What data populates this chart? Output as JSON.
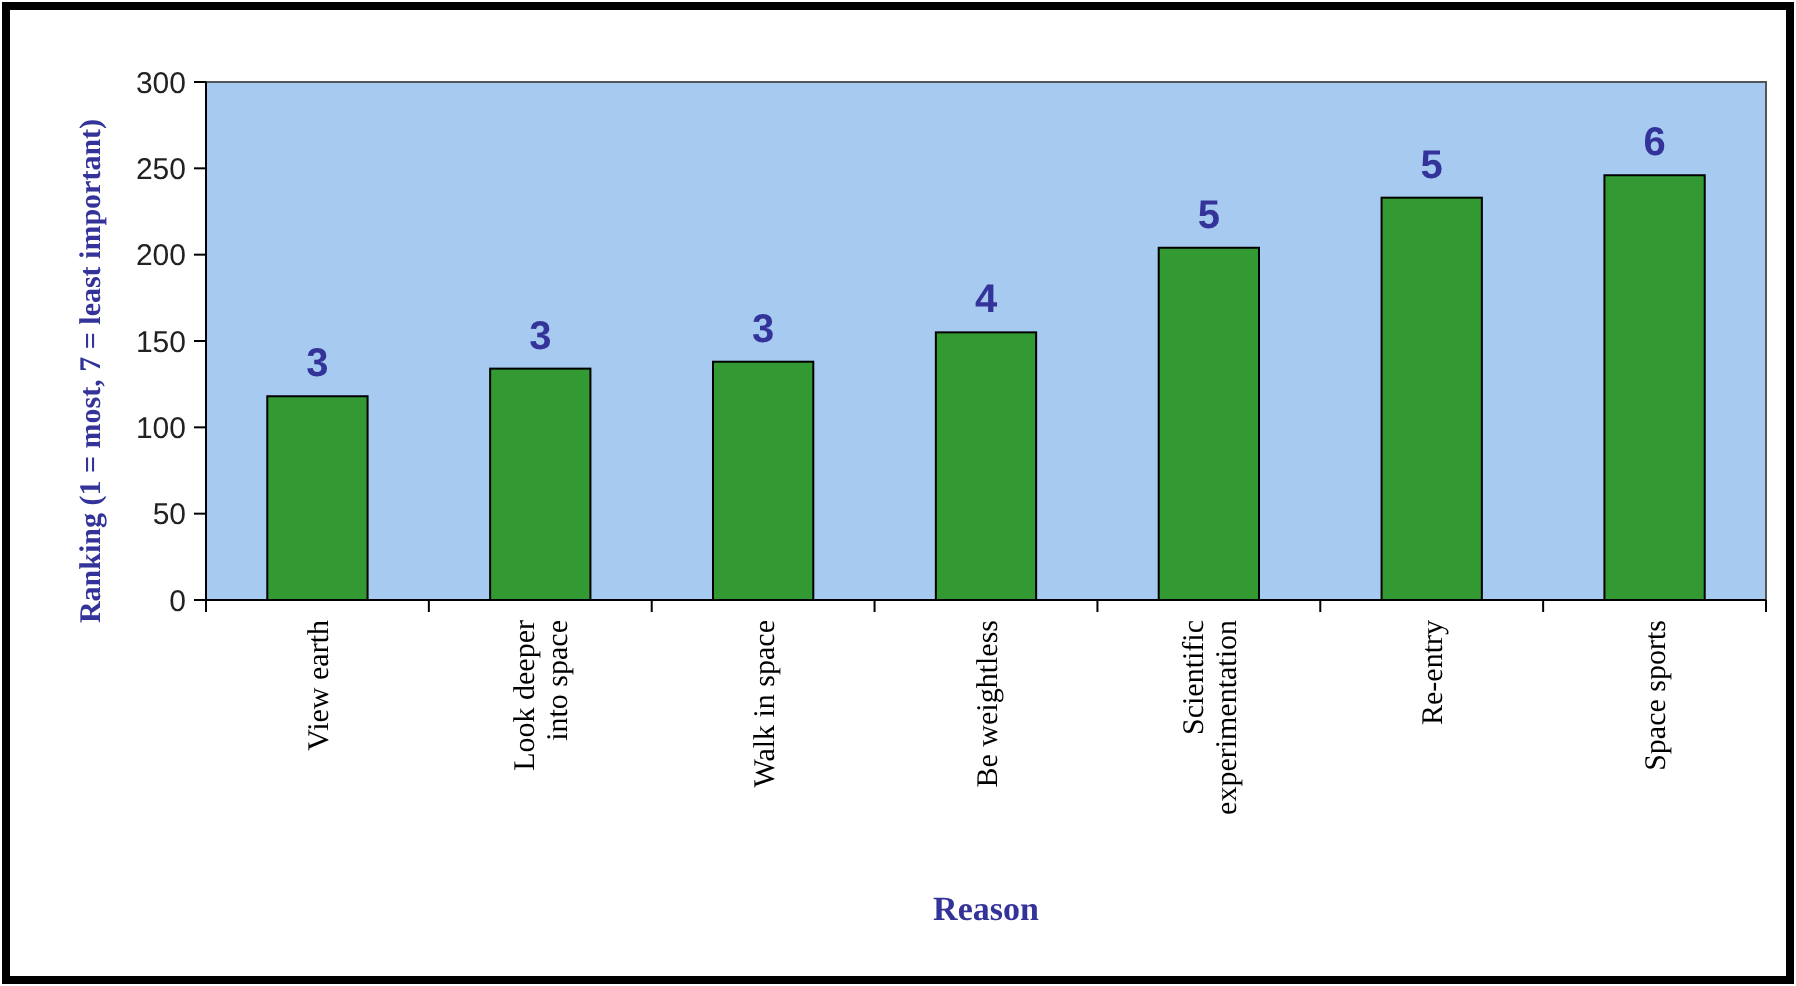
{
  "chart_data": {
    "type": "bar",
    "xlabel": "Reason",
    "ylabel": "Ranking (1 = most, 7 = least important)",
    "categories": [
      "View earth",
      "Look deeper into space",
      "Walk in space",
      "Be weightless",
      "Scientific experimentation",
      "Re-entry",
      "Space sports"
    ],
    "values": [
      118,
      134,
      138,
      155,
      204,
      233,
      246
    ],
    "annotations": [
      {
        "text": "3",
        "x": "View earth",
        "y": 118
      },
      {
        "text": "3",
        "x": "Look deeper into space",
        "y": 134
      },
      {
        "text": "3",
        "x": "Walk in space",
        "y": 138
      },
      {
        "text": "4",
        "x": "Be weightless",
        "y": 155
      },
      {
        "text": "5",
        "x": "Scientific experimentation",
        "y": 204
      },
      {
        "text": "5",
        "x": "Re-entry",
        "y": 233
      },
      {
        "text": "6",
        "x": "Space sports",
        "y": 246
      }
    ],
    "color": "#339933",
    "ylim": [
      0,
      300
    ],
    "yticks": [
      0,
      50,
      100,
      150,
      200,
      250,
      300
    ]
  }
}
